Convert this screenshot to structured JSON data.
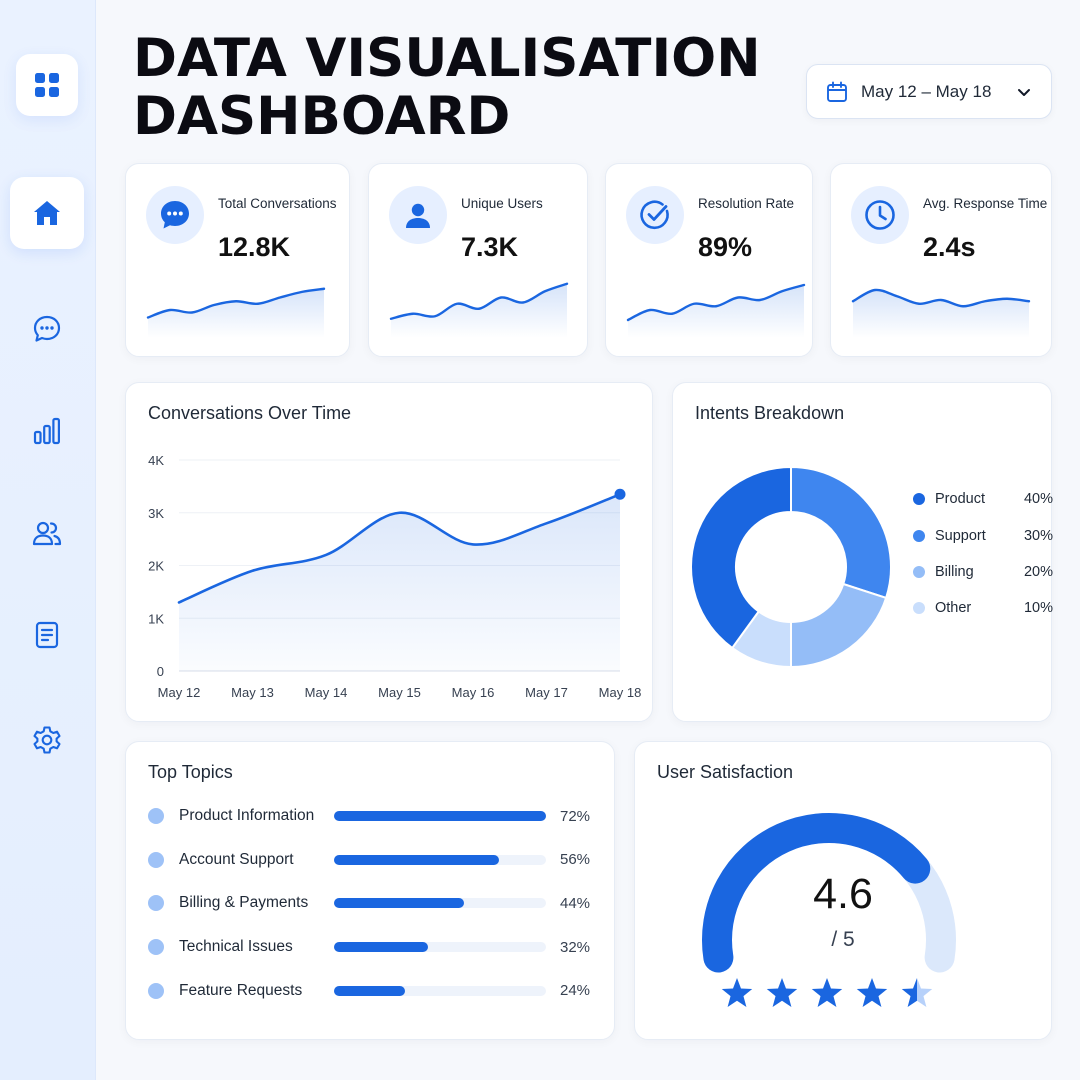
{
  "page_title": "DATA VISUALISATION DASHBOARD",
  "date_range": {
    "label": "May 12 – May 18"
  },
  "sidebar": {
    "items": [
      {
        "name": "logo",
        "icon": "grid-icon"
      },
      {
        "name": "home",
        "icon": "home-icon",
        "active": true
      },
      {
        "name": "conversations",
        "icon": "chat-icon"
      },
      {
        "name": "analytics",
        "icon": "bar-chart-icon"
      },
      {
        "name": "users",
        "icon": "users-icon"
      },
      {
        "name": "reports",
        "icon": "document-icon"
      },
      {
        "name": "settings",
        "icon": "gear-icon"
      }
    ]
  },
  "kpis": [
    {
      "label": "Total Conversations",
      "value": "12.8K",
      "icon": "chat-bubble-icon",
      "trend": [
        2,
        3.2,
        2.8,
        4,
        4.6,
        4.2,
        5.2,
        6.1,
        6.6
      ]
    },
    {
      "label": "Unique Users",
      "value": "7.3K",
      "icon": "user-icon",
      "trend": [
        1.8,
        2.6,
        2.2,
        4.2,
        3.4,
        5.2,
        4.4,
        6.2,
        7.4
      ]
    },
    {
      "label": "Resolution Rate",
      "value": "89%",
      "icon": "check-circle-icon",
      "trend": [
        1.6,
        3.2,
        2.6,
        4.2,
        3.8,
        5.2,
        4.8,
        6.2,
        7.2
      ]
    },
    {
      "label": "Avg. Response Time",
      "value": "2.4s",
      "icon": "clock-icon",
      "trend": [
        4.6,
        6.4,
        5.4,
        4.2,
        4.8,
        3.8,
        4.6,
        5.0,
        4.6
      ]
    }
  ],
  "colors": {
    "primary": "#1a66e0",
    "mid": "#3f86ef",
    "light": "#94bdf7",
    "pale": "#c9defc"
  },
  "conversations_over_time": {
    "title": "Conversations Over Time",
    "chart_data": {
      "type": "area",
      "x": [
        "May 12",
        "May 13",
        "May 14",
        "May 15",
        "May 16",
        "May 17",
        "May 18"
      ],
      "y_ticks": [
        "0",
        "1K",
        "2K",
        "3K",
        "4K"
      ],
      "ylim": [
        0,
        4000
      ],
      "series": [
        {
          "values": [
            1300,
            1900,
            2200,
            3000,
            2400,
            2800,
            3350
          ]
        }
      ],
      "grid": true
    }
  },
  "intents_breakdown": {
    "title": "Intents Breakdown",
    "chart_data": {
      "type": "pie",
      "categories": [
        "Product",
        "Support",
        "Billing",
        "Other"
      ],
      "values": [
        40,
        30,
        20,
        10
      ],
      "labels": [
        "40%",
        "30%",
        "20%",
        "10%"
      ],
      "colors": [
        "#1a66e0",
        "#3f86ef",
        "#94bdf7",
        "#c9defc"
      ],
      "donut": true,
      "legend": "right"
    }
  },
  "top_topics": {
    "title": "Top Topics",
    "chart_data": {
      "type": "bar",
      "categories": [
        "Product Information",
        "Account Support",
        "Billing & Payments",
        "Technical Issues",
        "Feature Requests"
      ],
      "values": [
        72,
        56,
        44,
        32,
        24
      ],
      "labels": [
        "72%",
        "56%",
        "44%",
        "32%",
        "24%"
      ],
      "orientation": "horizontal"
    }
  },
  "user_satisfaction": {
    "title": "User Satisfaction",
    "score": "4.6",
    "scale": "/ 5",
    "score_value": 4.6,
    "max": 5,
    "stars": 4.5
  }
}
